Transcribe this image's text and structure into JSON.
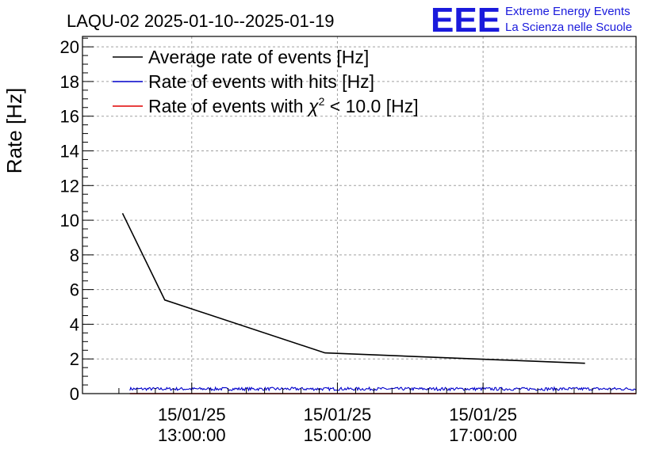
{
  "chart_data": {
    "type": "line",
    "title": "LAQU-02 2025-01-10--2025-01-19",
    "xlabel": "",
    "ylabel": "Rate [Hz]",
    "ylim": [
      0,
      20.6
    ],
    "yticks": [
      0,
      2,
      4,
      6,
      8,
      10,
      12,
      14,
      16,
      18,
      20
    ],
    "xlim": [
      11.5,
      19.1
    ],
    "xticks": [
      {
        "x": 13,
        "date": "15/01/25",
        "time": "13:00:00"
      },
      {
        "x": 15,
        "date": "15/01/25",
        "time": "15:00:00"
      },
      {
        "x": 17,
        "date": "15/01/25",
        "time": "17:00:00"
      }
    ],
    "grid": true,
    "legend_position": "top-left",
    "series": [
      {
        "name": "Average rate of events [Hz]",
        "color": "#000000",
        "x": [
          12.05,
          12.63,
          14.83,
          18.4
        ],
        "y": [
          10.4,
          5.4,
          2.35,
          1.75
        ]
      },
      {
        "name": "Rate of events with hits [Hz]",
        "color": "#0000cc",
        "x_range": [
          12.15,
          19.1
        ],
        "mean": 0.27,
        "noise": 0.09
      },
      {
        "name": "Rate of events with χ² < 10.0 [Hz]",
        "color": "#e00000",
        "x_range": [
          12.15,
          19.1
        ],
        "value": 0.0
      }
    ],
    "legend": {
      "series0": "Average rate of events [Hz]",
      "series1": "Rate of events with hits [Hz]",
      "series2_pre": "Rate of events with ",
      "series2_chi": "χ",
      "series2_sup": "2",
      "series2_post": " < 10.0 [Hz]"
    }
  },
  "logo": {
    "text": "EEE",
    "line1": "Extreme Energy Events",
    "line2": "La Scienza nelle Scuole"
  }
}
